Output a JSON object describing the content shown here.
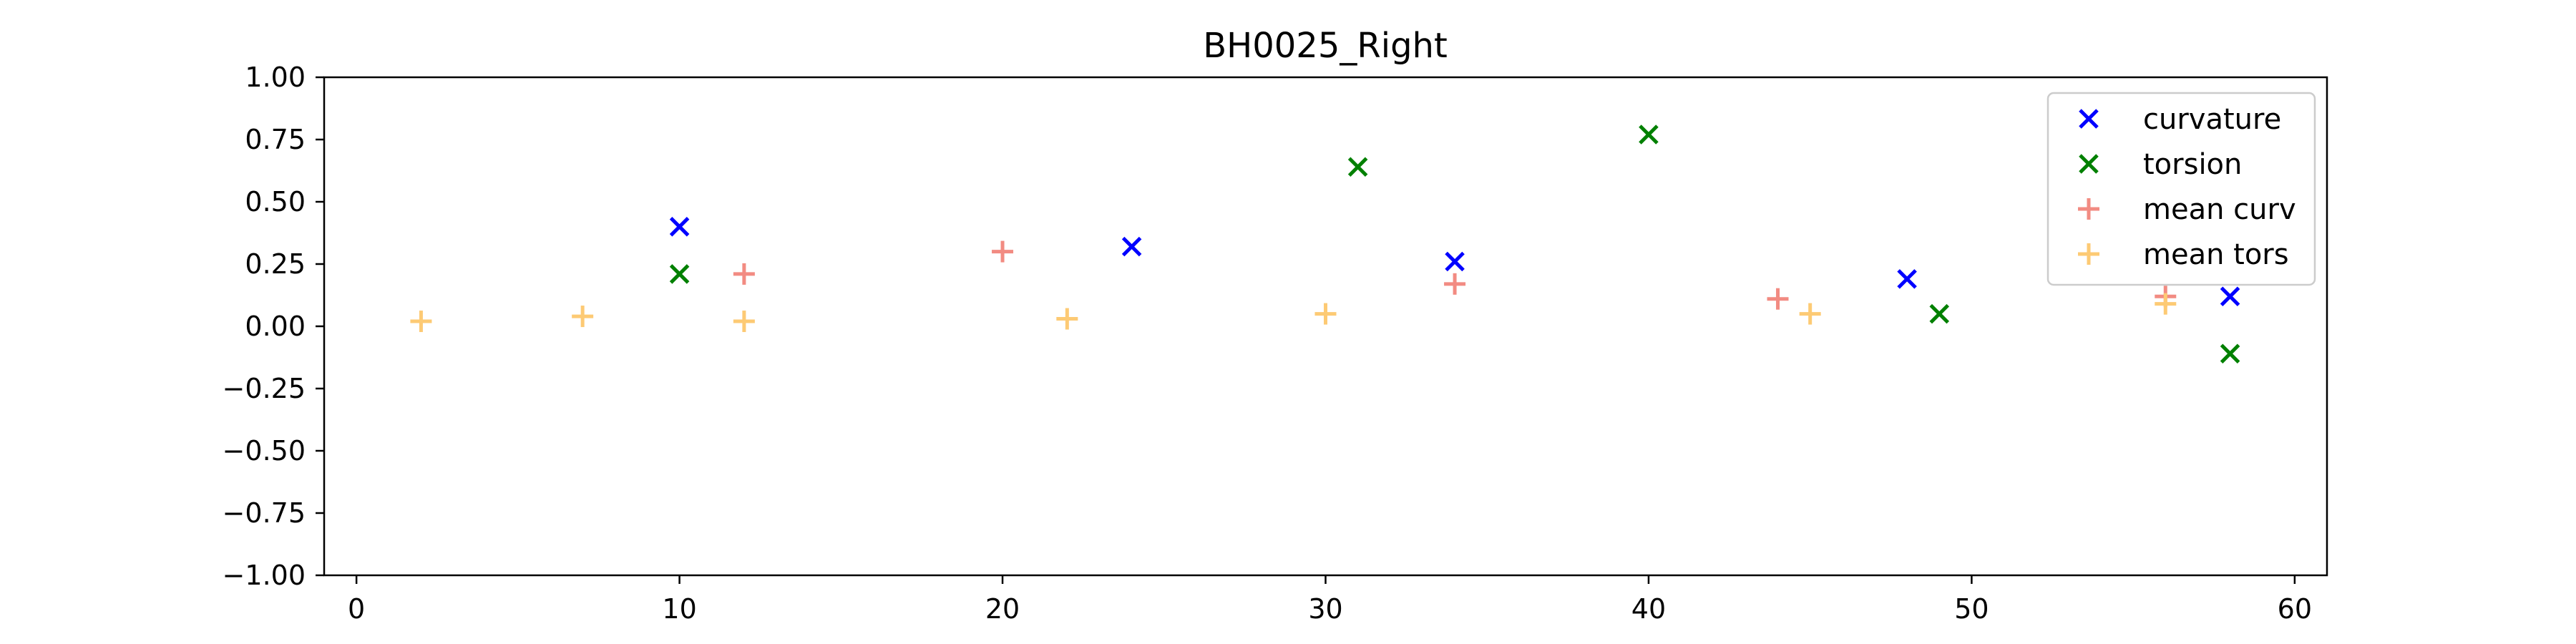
{
  "chart_data": {
    "type": "scatter",
    "title": "BH0025_Right",
    "xlabel": "",
    "ylabel": "",
    "xlim": [
      -1,
      61
    ],
    "ylim": [
      -1,
      1
    ],
    "x_ticks": [
      0,
      10,
      20,
      30,
      40,
      50,
      60
    ],
    "x_tick_labels": [
      "0",
      "10",
      "20",
      "30",
      "40",
      "50",
      "60"
    ],
    "y_ticks": [
      1,
      0.75,
      0.5,
      0.25,
      0,
      -0.25,
      -0.5,
      -0.75,
      -1
    ],
    "y_tick_labels": [
      "1.00",
      "0.75",
      "0.50",
      "0.25",
      "0.00",
      "−0.25",
      "−0.50",
      "−0.75",
      "−1.00"
    ],
    "grid": false,
    "legend_position": "top-right",
    "series": [
      {
        "name": "curvature",
        "marker": "x",
        "color": "#0000ff",
        "x": [
          10,
          24,
          34,
          48,
          58
        ],
        "y": [
          0.4,
          0.32,
          0.26,
          0.19,
          0.12
        ]
      },
      {
        "name": "torsion",
        "marker": "x",
        "color": "#008000",
        "x": [
          10,
          31,
          40,
          49,
          58
        ],
        "y": [
          0.21,
          0.64,
          0.77,
          0.05,
          -0.11
        ]
      },
      {
        "name": "mean curv",
        "marker": "+",
        "color": "#f28b82",
        "x": [
          12,
          20,
          34,
          44,
          56
        ],
        "y": [
          0.21,
          0.3,
          0.17,
          0.11,
          0.12
        ]
      },
      {
        "name": "mean tors",
        "marker": "+",
        "color": "#fdca74",
        "x": [
          2,
          7,
          12,
          22,
          30,
          45,
          56
        ],
        "y": [
          0.02,
          0.04,
          0.02,
          0.03,
          0.05,
          0.05,
          0.09
        ]
      }
    ]
  }
}
